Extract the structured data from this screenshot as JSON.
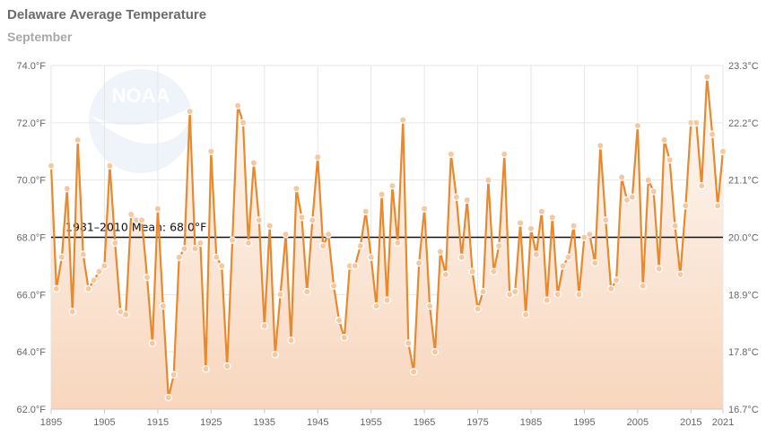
{
  "chart_data": {
    "type": "line",
    "title": "Delaware Average Temperature",
    "subtitle": "September",
    "x": [
      1895,
      1896,
      1897,
      1898,
      1899,
      1900,
      1901,
      1902,
      1903,
      1904,
      1905,
      1906,
      1907,
      1908,
      1909,
      1910,
      1911,
      1912,
      1913,
      1914,
      1915,
      1916,
      1917,
      1918,
      1919,
      1920,
      1921,
      1922,
      1923,
      1924,
      1925,
      1926,
      1927,
      1928,
      1929,
      1930,
      1931,
      1932,
      1933,
      1934,
      1935,
      1936,
      1937,
      1938,
      1939,
      1940,
      1941,
      1942,
      1943,
      1944,
      1945,
      1946,
      1947,
      1948,
      1949,
      1950,
      1951,
      1952,
      1953,
      1954,
      1955,
      1956,
      1957,
      1958,
      1959,
      1960,
      1961,
      1962,
      1963,
      1964,
      1965,
      1966,
      1967,
      1968,
      1969,
      1970,
      1971,
      1972,
      1973,
      1974,
      1975,
      1976,
      1977,
      1978,
      1979,
      1980,
      1981,
      1982,
      1983,
      1984,
      1985,
      1986,
      1987,
      1988,
      1989,
      1990,
      1991,
      1992,
      1993,
      1994,
      1995,
      1996,
      1997,
      1998,
      1999,
      2000,
      2001,
      2002,
      2003,
      2004,
      2005,
      2006,
      2007,
      2008,
      2009,
      2010,
      2011,
      2012,
      2013,
      2014,
      2015,
      2016,
      2017,
      2018,
      2019,
      2020,
      2021
    ],
    "series": [
      {
        "values": [
          70.5,
          66.2,
          67.3,
          69.7,
          65.4,
          71.4,
          67.4,
          66.2,
          66.5,
          66.8,
          67.0,
          70.5,
          67.8,
          65.4,
          65.3,
          68.8,
          68.6,
          68.6,
          66.6,
          64.3,
          69.0,
          65.6,
          62.4,
          63.2,
          67.3,
          67.6,
          72.4,
          67.6,
          67.8,
          63.4,
          71.0,
          67.3,
          67.0,
          63.5,
          67.9,
          72.6,
          72.0,
          67.8,
          70.6,
          68.6,
          64.9,
          68.4,
          63.9,
          66.0,
          68.1,
          64.4,
          69.7,
          68.7,
          66.1,
          68.6,
          70.8,
          67.7,
          68.1,
          66.3,
          65.1,
          64.5,
          67.0,
          67.0,
          67.7,
          68.9,
          67.3,
          65.6,
          69.5,
          65.8,
          69.8,
          67.8,
          72.1,
          64.3,
          63.3,
          67.1,
          69.0,
          65.6,
          64.0,
          67.5,
          66.7,
          70.9,
          69.4,
          67.3,
          69.3,
          66.8,
          65.5,
          66.1,
          70.0,
          66.8,
          67.7,
          70.9,
          66.0,
          66.1,
          68.5,
          65.3,
          68.3,
          67.4,
          68.9,
          65.8,
          68.7,
          66.0,
          67.0,
          67.3,
          68.4,
          66.0,
          68.0,
          68.1,
          67.1,
          71.2,
          68.6,
          66.2,
          66.5,
          70.1,
          69.3,
          69.4,
          71.9,
          66.3,
          70.0,
          69.6,
          66.9,
          71.4,
          70.7,
          68.4,
          66.7,
          69.1,
          72.0,
          72.0,
          69.8,
          73.6,
          71.6,
          69.1,
          71.0
        ]
      }
    ],
    "mean": {
      "value": 68.0,
      "label": "1981–2010 Mean: 68.0°F"
    },
    "xlim": [
      1895,
      2021
    ],
    "ylim": [
      62,
      74
    ],
    "x_ticks": [
      "1895",
      "1905",
      "1915",
      "1925",
      "1935",
      "1945",
      "1955",
      "1965",
      "1975",
      "1985",
      "1995",
      "2005",
      "2015",
      "2021"
    ],
    "x_tick_values": [
      1895,
      1905,
      1915,
      1925,
      1935,
      1945,
      1955,
      1965,
      1975,
      1985,
      1995,
      2005,
      2015,
      2021
    ],
    "y_ticks_left": [
      "62.0°F",
      "64.0°F",
      "66.0°F",
      "68.0°F",
      "70.0°F",
      "72.0°F",
      "74.0°F"
    ],
    "y_tick_values": [
      62,
      64,
      66,
      68,
      70,
      72,
      74
    ],
    "y_ticks_right": [
      "16.7°C",
      "17.8°C",
      "18.9°C",
      "20.0°C",
      "21.1°C",
      "22.2°C",
      "23.3°C"
    ],
    "grid": true,
    "colors": {
      "line": "#e8892e",
      "marker": "#f7c8a0",
      "marker_stroke": "#ffffff",
      "area_top": "#fdf3ec",
      "area_bottom": "#f8d7bf",
      "mean_line": "#111111",
      "grid": "#e6e6e6"
    },
    "watermark_text": "NOAA"
  }
}
